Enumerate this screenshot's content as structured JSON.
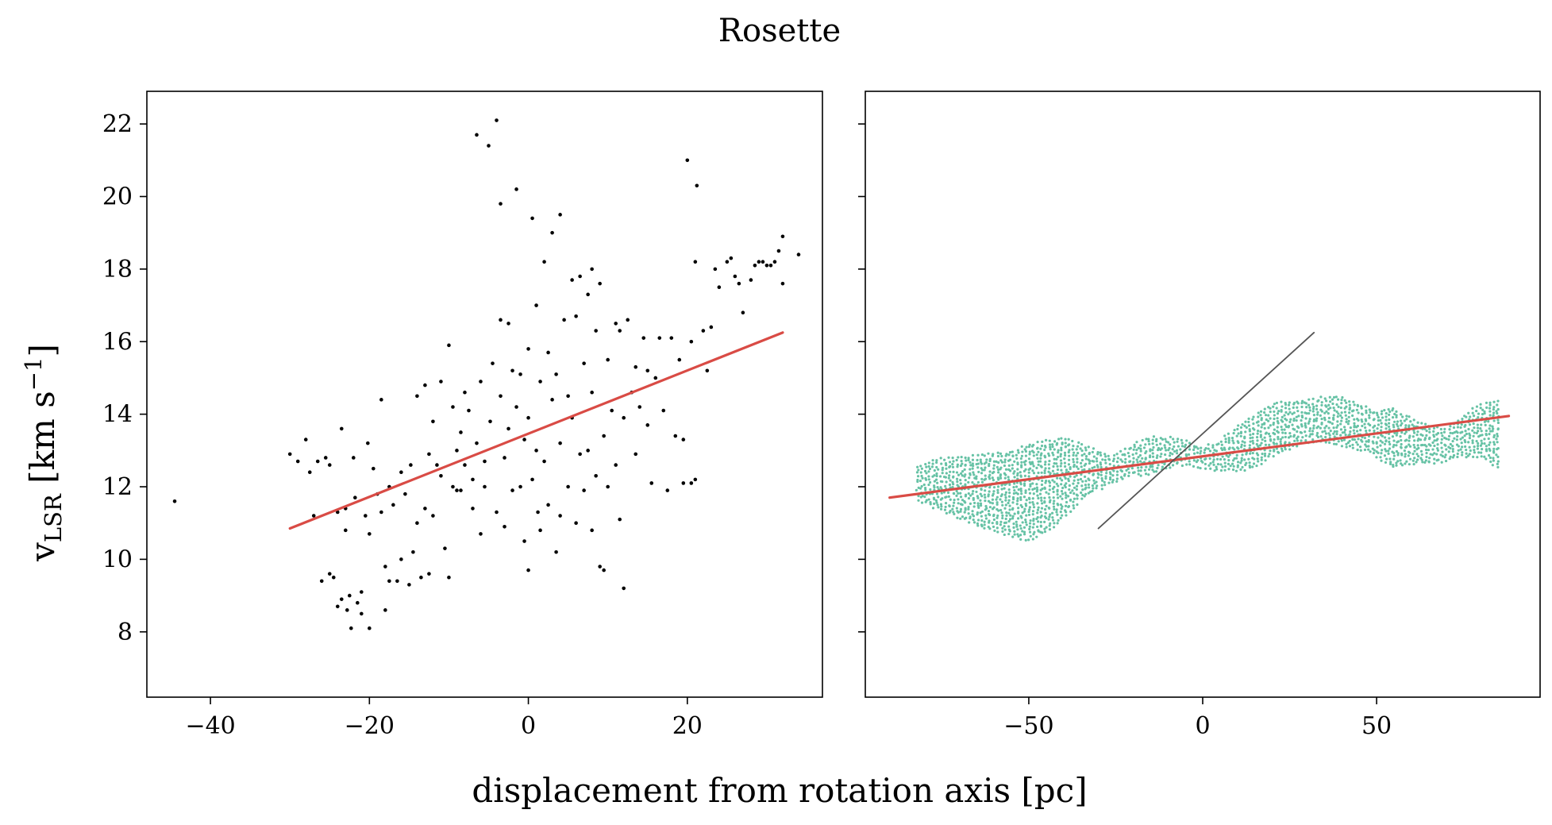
{
  "figure": {
    "title": "Rosette",
    "xlabel": "displacement from rotation axis [pc]",
    "ylabel": {
      "main": "v",
      "subscript": "LSR",
      "unit_open": " [km s",
      "unit_exp": "−1",
      "unit_close": "]"
    }
  },
  "chart_data": [
    {
      "type": "scatter",
      "panel": "left",
      "xlim": [
        -48,
        37
      ],
      "ylim": [
        6.2,
        22.9
      ],
      "xticks": [
        -40,
        -20,
        0,
        20
      ],
      "xtick_labels": [
        "−40",
        "−20",
        "0",
        "20"
      ],
      "yticks": [
        8,
        10,
        12,
        14,
        16,
        18,
        20,
        22
      ],
      "ytick_labels": [
        "8",
        "10",
        "12",
        "14",
        "16",
        "18",
        "20",
        "22"
      ],
      "grid": false,
      "series": [
        {
          "color": "#000000",
          "points": [
            [
              -44.5,
              11.6
            ],
            [
              -30.0,
              12.9
            ],
            [
              -29.0,
              12.7
            ],
            [
              -28.0,
              13.3
            ],
            [
              -27.5,
              12.4
            ],
            [
              -27.0,
              11.2
            ],
            [
              -26.5,
              12.7
            ],
            [
              -26.0,
              9.4
            ],
            [
              -25.5,
              12.8
            ],
            [
              -25.0,
              12.6
            ],
            [
              -25.0,
              9.6
            ],
            [
              -24.5,
              9.5
            ],
            [
              -24.0,
              11.3
            ],
            [
              -24.0,
              8.7
            ],
            [
              -23.5,
              13.6
            ],
            [
              -23.5,
              8.9
            ],
            [
              -23.0,
              11.4
            ],
            [
              -23.0,
              10.8
            ],
            [
              -22.8,
              8.6
            ],
            [
              -22.5,
              9.0
            ],
            [
              -22.3,
              8.1
            ],
            [
              -22.0,
              12.8
            ],
            [
              -21.8,
              11.7
            ],
            [
              -21.5,
              8.8
            ],
            [
              -21.0,
              9.1
            ],
            [
              -21.0,
              8.5
            ],
            [
              -20.5,
              11.2
            ],
            [
              -20.2,
              13.2
            ],
            [
              -20.0,
              10.7
            ],
            [
              -20.0,
              8.1
            ],
            [
              -19.5,
              12.5
            ],
            [
              -19.0,
              11.8
            ],
            [
              -18.5,
              14.4
            ],
            [
              -18.5,
              11.3
            ],
            [
              -18.0,
              9.8
            ],
            [
              -18.0,
              8.6
            ],
            [
              -17.5,
              12.0
            ],
            [
              -17.5,
              9.4
            ],
            [
              -17.0,
              11.5
            ],
            [
              -16.5,
              9.4
            ],
            [
              -16.0,
              12.4
            ],
            [
              -16.0,
              10.0
            ],
            [
              -15.5,
              11.8
            ],
            [
              -15.0,
              9.3
            ],
            [
              -14.8,
              12.6
            ],
            [
              -14.5,
              10.2
            ],
            [
              -14.0,
              14.5
            ],
            [
              -14.0,
              11.0
            ],
            [
              -13.5,
              9.5
            ],
            [
              -13.0,
              14.8
            ],
            [
              -13.0,
              11.4
            ],
            [
              -12.5,
              12.9
            ],
            [
              -12.5,
              9.6
            ],
            [
              -12.0,
              13.8
            ],
            [
              -12.0,
              11.2
            ],
            [
              -11.5,
              12.6
            ],
            [
              -11.0,
              14.9
            ],
            [
              -11.0,
              12.3
            ],
            [
              -10.5,
              10.3
            ],
            [
              -10.0,
              15.9
            ],
            [
              -10.0,
              9.5
            ],
            [
              -9.5,
              14.2
            ],
            [
              -9.5,
              12.0
            ],
            [
              -9.0,
              13.0
            ],
            [
              -9.0,
              11.9
            ],
            [
              -8.5,
              13.5
            ],
            [
              -8.5,
              11.9
            ],
            [
              -8.0,
              14.6
            ],
            [
              -8.0,
              12.6
            ],
            [
              -7.5,
              14.1
            ],
            [
              -7.0,
              12.2
            ],
            [
              -7.0,
              11.4
            ],
            [
              -6.5,
              13.2
            ],
            [
              -6.5,
              21.7
            ],
            [
              -6.0,
              14.9
            ],
            [
              -6.0,
              10.7
            ],
            [
              -5.5,
              12.7
            ],
            [
              -5.5,
              12.0
            ],
            [
              -5.0,
              21.4
            ],
            [
              -4.8,
              13.8
            ],
            [
              -4.5,
              15.4
            ],
            [
              -4.0,
              22.1
            ],
            [
              -4.0,
              11.3
            ],
            [
              -3.5,
              16.6
            ],
            [
              -3.5,
              14.5
            ],
            [
              -3.5,
              19.8
            ],
            [
              -3.0,
              12.8
            ],
            [
              -3.0,
              10.9
            ],
            [
              -2.5,
              16.5
            ],
            [
              -2.5,
              13.6
            ],
            [
              -2.0,
              15.2
            ],
            [
              -2.0,
              11.9
            ],
            [
              -1.5,
              20.2
            ],
            [
              -1.5,
              14.2
            ],
            [
              -1.0,
              15.1
            ],
            [
              -1.0,
              12.0
            ],
            [
              -0.5,
              13.3
            ],
            [
              -0.5,
              10.5
            ],
            [
              0.0,
              15.8
            ],
            [
              0.0,
              13.9
            ],
            [
              0.0,
              9.7
            ],
            [
              0.5,
              19.4
            ],
            [
              0.5,
              12.2
            ],
            [
              1.0,
              17.0
            ],
            [
              1.0,
              13.0
            ],
            [
              1.2,
              11.3
            ],
            [
              1.5,
              14.9
            ],
            [
              1.5,
              10.8
            ],
            [
              2.0,
              18.2
            ],
            [
              2.0,
              12.7
            ],
            [
              2.5,
              15.7
            ],
            [
              2.5,
              11.5
            ],
            [
              3.0,
              19.0
            ],
            [
              3.0,
              14.4
            ],
            [
              3.5,
              15.1
            ],
            [
              3.5,
              10.2
            ],
            [
              4.0,
              19.5
            ],
            [
              4.0,
              13.2
            ],
            [
              4.0,
              11.2
            ],
            [
              4.5,
              16.6
            ],
            [
              5.0,
              14.5
            ],
            [
              5.0,
              12.0
            ],
            [
              5.5,
              17.7
            ],
            [
              5.5,
              13.9
            ],
            [
              6.0,
              16.7
            ],
            [
              6.0,
              11.0
            ],
            [
              6.5,
              17.8
            ],
            [
              6.5,
              12.9
            ],
            [
              7.0,
              15.4
            ],
            [
              7.0,
              11.9
            ],
            [
              7.5,
              17.3
            ],
            [
              7.5,
              13.0
            ],
            [
              8.0,
              18.0
            ],
            [
              8.0,
              14.6
            ],
            [
              8.0,
              10.8
            ],
            [
              8.5,
              16.3
            ],
            [
              8.5,
              12.3
            ],
            [
              9.0,
              17.6
            ],
            [
              9.0,
              9.8
            ],
            [
              9.5,
              13.4
            ],
            [
              9.5,
              9.7
            ],
            [
              10.0,
              15.5
            ],
            [
              10.0,
              12.0
            ],
            [
              10.5,
              14.1
            ],
            [
              11.0,
              16.5
            ],
            [
              11.0,
              12.6
            ],
            [
              11.5,
              16.3
            ],
            [
              11.5,
              11.1
            ],
            [
              12.0,
              13.9
            ],
            [
              12.0,
              9.2
            ],
            [
              12.5,
              16.6
            ],
            [
              13.0,
              14.6
            ],
            [
              13.5,
              15.3
            ],
            [
              13.5,
              12.9
            ],
            [
              14.0,
              14.2
            ],
            [
              14.5,
              16.1
            ],
            [
              15.0,
              15.2
            ],
            [
              15.0,
              13.7
            ],
            [
              15.5,
              12.1
            ],
            [
              16.0,
              15.0
            ],
            [
              16.5,
              16.1
            ],
            [
              17.0,
              14.1
            ],
            [
              17.5,
              11.9
            ],
            [
              18.0,
              16.1
            ],
            [
              18.5,
              13.4
            ],
            [
              19.0,
              15.5
            ],
            [
              19.5,
              13.3
            ],
            [
              19.5,
              12.1
            ],
            [
              20.0,
              21.0
            ],
            [
              20.5,
              16.0
            ],
            [
              20.5,
              12.1
            ],
            [
              21.0,
              18.2
            ],
            [
              21.0,
              12.2
            ],
            [
              21.2,
              20.3
            ],
            [
              22.0,
              16.3
            ],
            [
              22.5,
              15.2
            ],
            [
              23.0,
              16.4
            ],
            [
              23.5,
              18.0
            ],
            [
              24.0,
              17.5
            ],
            [
              25.0,
              18.2
            ],
            [
              25.5,
              18.3
            ],
            [
              26.0,
              17.8
            ],
            [
              26.5,
              17.6
            ],
            [
              27.0,
              16.8
            ],
            [
              28.0,
              17.7
            ],
            [
              28.5,
              18.1
            ],
            [
              29.0,
              18.2
            ],
            [
              29.5,
              18.2
            ],
            [
              30.0,
              18.1
            ],
            [
              30.5,
              18.1
            ],
            [
              31.0,
              18.2
            ],
            [
              31.5,
              18.5
            ],
            [
              32.0,
              17.6
            ],
            [
              32.0,
              18.9
            ],
            [
              34.0,
              18.4
            ]
          ]
        },
        {
          "type": "line",
          "color": "#d94b45",
          "x": [
            -30,
            32
          ],
          "y": [
            10.85,
            16.25
          ]
        }
      ]
    },
    {
      "type": "scatter",
      "panel": "right",
      "xlim": [
        -97,
        97
      ],
      "ylim": [
        6.2,
        22.9
      ],
      "xticks": [
        -50,
        0,
        50
      ],
      "xtick_labels": [
        "−50",
        "0",
        "50"
      ],
      "yticks": [
        8,
        10,
        12,
        14,
        16,
        18,
        20,
        22
      ],
      "ytick_labels": [],
      "grid": false,
      "series": [
        {
          "color": "#66c2a5",
          "envelope": {
            "x": [
              -82,
              -75,
              -65,
              -55,
              -50,
              -45,
              -40,
              -35,
              -30,
              -25,
              -20,
              -15,
              -10,
              -5,
              0,
              5,
              10,
              15,
              20,
              25,
              30,
              35,
              40,
              45,
              50,
              55,
              60,
              65,
              70,
              75,
              80,
              85
            ],
            "lower": [
              11.6,
              11.3,
              10.9,
              10.6,
              10.5,
              10.7,
              11.1,
              11.6,
              11.9,
              12.1,
              12.3,
              12.3,
              12.5,
              12.6,
              12.5,
              12.4,
              12.4,
              12.5,
              12.8,
              13.0,
              13.2,
              13.2,
              13.1,
              13.0,
              12.8,
              12.5,
              12.6,
              12.6,
              12.7,
              12.8,
              12.8,
              12.5
            ],
            "upper": [
              12.6,
              12.8,
              12.9,
              13.0,
              13.2,
              13.3,
              13.4,
              13.2,
              13.0,
              12.9,
              13.2,
              13.4,
              13.4,
              13.3,
              13.1,
              13.3,
              13.7,
              14.0,
              14.3,
              14.4,
              14.4,
              14.5,
              14.5,
              14.3,
              14.1,
              14.2,
              13.9,
              13.7,
              13.6,
              14.0,
              14.3,
              14.4
            ]
          }
        },
        {
          "type": "line",
          "color": "#d94b45",
          "x": [
            -90,
            88
          ],
          "y": [
            11.7,
            13.95
          ]
        },
        {
          "type": "line",
          "color": "#555555",
          "x": [
            -30,
            32
          ],
          "y": [
            10.85,
            16.25
          ]
        }
      ]
    }
  ]
}
